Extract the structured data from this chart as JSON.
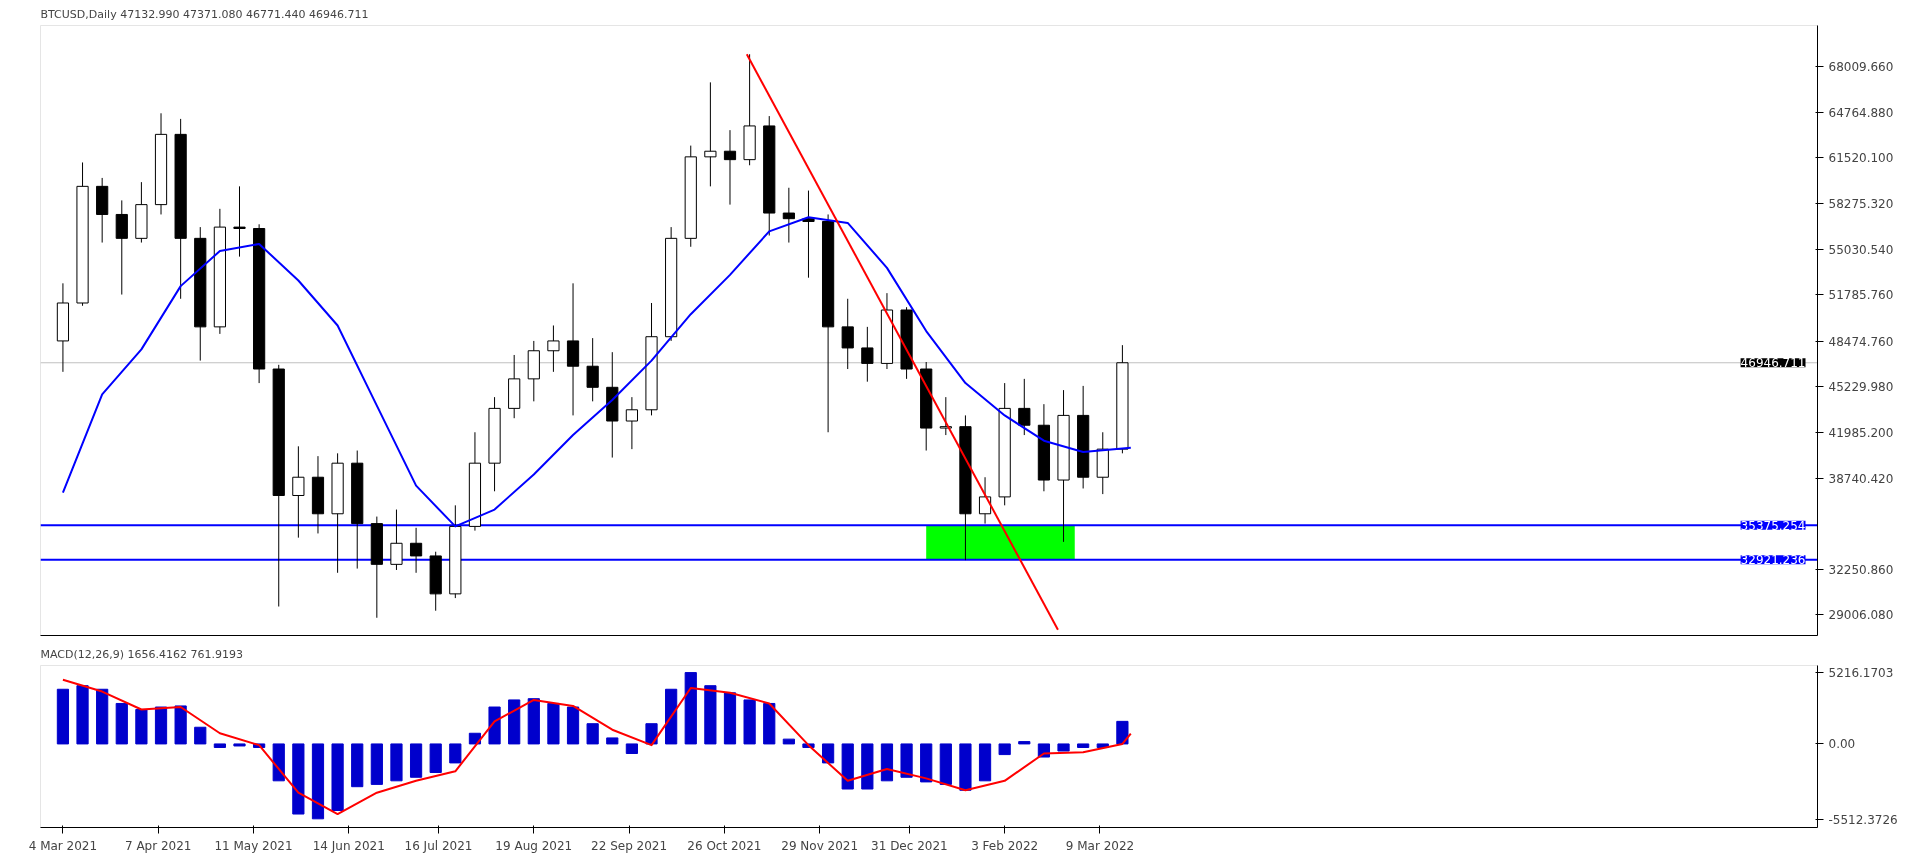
{
  "chart_data": [
    {
      "type": "candlestick",
      "title": "BTCUSD,Daily  47132.990 47371.080 46771.440 46946.711",
      "tick_labels": "y",
      "x": [
        "2021-03-04",
        "2021-03-11",
        "2021-03-18",
        "2021-03-25",
        "2021-04-01",
        "2021-04-08",
        "2021-04-15",
        "2021-04-22",
        "2021-04-29",
        "2021-05-06",
        "2021-05-13",
        "2021-05-20",
        "2021-05-27",
        "2021-06-03",
        "2021-06-10",
        "2021-06-17",
        "2021-06-24",
        "2021-07-01",
        "2021-07-08",
        "2021-07-15",
        "2021-07-22",
        "2021-07-29",
        "2021-08-05",
        "2021-08-12",
        "2021-08-19",
        "2021-08-26",
        "2021-09-02",
        "2021-09-09",
        "2021-09-16",
        "2021-09-23",
        "2021-09-30",
        "2021-10-07",
        "2021-10-14",
        "2021-10-21",
        "2021-10-28",
        "2021-11-04",
        "2021-11-11",
        "2021-11-18",
        "2021-11-25",
        "2021-12-02",
        "2021-12-09",
        "2021-12-16",
        "2021-12-23",
        "2021-12-30",
        "2022-01-06",
        "2022-01-13",
        "2022-01-20",
        "2022-01-27",
        "2022-02-03",
        "2022-02-10",
        "2022-02-17",
        "2022-02-24",
        "2022-03-03",
        "2022-03-10",
        "2022-03-17"
      ],
      "ohlc": [
        [
          48500,
          52600,
          46300,
          51200
        ],
        [
          51200,
          61200,
          51000,
          59500
        ],
        [
          59500,
          60100,
          55500,
          57500
        ],
        [
          57500,
          58500,
          51800,
          55800
        ],
        [
          55800,
          59800,
          55500,
          58200
        ],
        [
          58200,
          64700,
          57500,
          63200
        ],
        [
          63200,
          64300,
          51500,
          55800
        ],
        [
          55800,
          56600,
          47100,
          49500
        ],
        [
          49500,
          57900,
          49000,
          56600
        ],
        [
          56600,
          59500,
          54500,
          56500
        ],
        [
          56500,
          56800,
          45500,
          46500
        ],
        [
          46500,
          46800,
          29600,
          37500
        ],
        [
          37500,
          41000,
          34500,
          38800
        ],
        [
          38800,
          40300,
          34800,
          36200
        ],
        [
          36200,
          40500,
          32000,
          39800
        ],
        [
          39800,
          40700,
          32300,
          35500
        ],
        [
          35500,
          36000,
          28800,
          32600
        ],
        [
          32600,
          36500,
          32200,
          34100
        ],
        [
          34100,
          35200,
          32000,
          33200
        ],
        [
          33200,
          33500,
          29300,
          30500
        ],
        [
          30500,
          36800,
          30200,
          35300
        ],
        [
          35300,
          42000,
          35000,
          39800
        ],
        [
          39800,
          44500,
          37800,
          43700
        ],
        [
          43700,
          47500,
          43000,
          45800
        ],
        [
          45800,
          48500,
          44200,
          47800
        ],
        [
          47800,
          49600,
          46300,
          48500
        ],
        [
          48500,
          52600,
          43200,
          46700
        ],
        [
          46700,
          48700,
          44200,
          45200
        ],
        [
          45200,
          47700,
          40200,
          42800
        ],
        [
          42800,
          44500,
          40800,
          43600
        ],
        [
          43600,
          51200,
          43200,
          48800
        ],
        [
          48800,
          56600,
          48500,
          55800
        ],
        [
          55800,
          62400,
          55200,
          61600
        ],
        [
          61600,
          66900,
          59500,
          62000
        ],
        [
          62000,
          63500,
          58200,
          61400
        ],
        [
          61400,
          68900,
          61000,
          63800
        ],
        [
          63800,
          64500,
          56000,
          57600
        ],
        [
          57600,
          59400,
          55500,
          57200
        ],
        [
          57200,
          59200,
          53000,
          57000
        ],
        [
          57000,
          57500,
          42000,
          49500
        ],
        [
          49500,
          51500,
          46500,
          48000
        ],
        [
          48000,
          49500,
          45600,
          46900
        ],
        [
          46900,
          51900,
          46500,
          50700
        ],
        [
          50700,
          50900,
          45800,
          46500
        ],
        [
          46500,
          47000,
          40700,
          42300
        ],
        [
          42300,
          44500,
          41800,
          42400
        ],
        [
          42400,
          43200,
          32900,
          36200
        ],
        [
          36200,
          38800,
          35500,
          37400
        ],
        [
          37400,
          45500,
          36800,
          43700
        ],
        [
          43700,
          45800,
          41800,
          42500
        ],
        [
          42500,
          44000,
          37800,
          38600
        ],
        [
          38600,
          45000,
          34200,
          43200
        ],
        [
          43200,
          45300,
          38000,
          38800
        ],
        [
          38800,
          42000,
          37600,
          40800
        ],
        [
          40800,
          48200,
          40500,
          46946.711
        ]
      ],
      "series": [
        {
          "type": "line",
          "color": "#0000ff",
          "x": [
            "2021-03-04",
            "2021-03-18",
            "2021-04-01",
            "2021-04-15",
            "2021-04-29",
            "2021-05-13",
            "2021-05-27",
            "2021-06-10",
            "2021-06-24",
            "2021-07-08",
            "2021-07-22",
            "2021-08-05",
            "2021-08-19",
            "2021-09-02",
            "2021-09-16",
            "2021-09-30",
            "2021-10-14",
            "2021-10-28",
            "2021-11-11",
            "2021-11-25",
            "2021-12-09",
            "2021-12-23",
            "2022-01-06",
            "2022-01-20",
            "2022-02-03",
            "2022-02-17",
            "2022-03-03",
            "2022-03-20"
          ],
          "values": [
            37700,
            44700,
            47900,
            52400,
            54900,
            55400,
            52800,
            49600,
            43900,
            38200,
            35300,
            36500,
            39000,
            41800,
            44300,
            47100,
            50400,
            53200,
            56300,
            57300,
            56900,
            53700,
            49200,
            45500,
            43200,
            41400,
            40600,
            40900
          ]
        },
        {
          "type": "line",
          "color": "#ff0000",
          "x": [
            "2021-11-03",
            "2022-02-22"
          ],
          "values": [
            68900,
            27950
          ]
        }
      ],
      "xlim": [
        "2021-02-24",
        "2022-11-20"
      ],
      "ylim": [
        27537,
        70947
      ],
      "yticks": [
        {
          "value": 29006.08,
          "label": "29006.080"
        },
        {
          "value": 32250.86,
          "label": "32250.860"
        },
        {
          "value": 38740.42,
          "label": "38740.420"
        },
        {
          "value": 41985.2,
          "label": "41985.200"
        },
        {
          "value": 45229.98,
          "label": "45229.980"
        },
        {
          "value": 48474.76,
          "label": "48474.760"
        },
        {
          "value": 51785.76,
          "label": "51785.760"
        },
        {
          "value": 55030.54,
          "label": "55030.540"
        },
        {
          "value": 58275.32,
          "label": "58275.320"
        },
        {
          "value": 61520.1,
          "label": "61520.100"
        },
        {
          "value": 64764.88,
          "label": "64764.880"
        },
        {
          "value": 68009.66,
          "label": "68009.660"
        }
      ],
      "ref_lines": [
        {
          "axis": "y",
          "value": 35375.254,
          "label": "35375.254",
          "color": "#0000ff"
        },
        {
          "axis": "y",
          "value": 32921.236,
          "label": "32921.236",
          "color": "#0000ff"
        },
        {
          "axis": "y",
          "value": 46946.711,
          "label": "46946.711",
          "color": "#c0c0c0"
        }
      ],
      "bands": [
        {
          "axis": "x",
          "from": "2022-01-06",
          "to": "2022-02-28",
          "color": "#00ff00"
        }
      ]
    },
    {
      "type": "bar",
      "title": "MACD(12,26,9) 1656.4162 761.9193",
      "x": [
        "2021-03-04",
        "2021-03-11",
        "2021-03-18",
        "2021-03-25",
        "2021-04-01",
        "2021-04-08",
        "2021-04-15",
        "2021-04-22",
        "2021-04-29",
        "2021-05-06",
        "2021-05-13",
        "2021-05-20",
        "2021-05-27",
        "2021-06-03",
        "2021-06-10",
        "2021-06-17",
        "2021-06-24",
        "2021-07-01",
        "2021-07-08",
        "2021-07-15",
        "2021-07-22",
        "2021-07-29",
        "2021-08-05",
        "2021-08-12",
        "2021-08-19",
        "2021-08-26",
        "2021-09-02",
        "2021-09-09",
        "2021-09-16",
        "2021-09-23",
        "2021-09-30",
        "2021-10-07",
        "2021-10-14",
        "2021-10-21",
        "2021-10-28",
        "2021-11-04",
        "2021-11-11",
        "2021-11-18",
        "2021-11-25",
        "2021-12-02",
        "2021-12-09",
        "2021-12-16",
        "2021-12-23",
        "2021-12-30",
        "2022-01-06",
        "2022-01-13",
        "2022-01-20",
        "2022-01-27",
        "2022-02-03",
        "2022-02-10",
        "2022-02-17",
        "2022-02-24",
        "2022-03-03",
        "2022-03-10",
        "2022-03-17"
      ],
      "series": [
        {
          "type": "bar",
          "color": "#0000cc",
          "values": [
            4000,
            4260,
            4000,
            2960,
            2520,
            2700,
            2780,
            1220,
            -260,
            -150,
            -260,
            -2700,
            -5130,
            -5480,
            -4870,
            -3130,
            -2960,
            -2700,
            -2440,
            -2090,
            -1390,
            780,
            2700,
            3220,
            3310,
            2960,
            2700,
            1480,
            440,
            -700,
            1480,
            4000,
            5220,
            4260,
            3740,
            3220,
            2960,
            350,
            -260,
            -1390,
            -3300,
            -3300,
            -2700,
            -2440,
            -2780,
            -2960,
            -3390,
            -2700,
            -780,
            170,
            -960,
            -520,
            -260,
            -260,
            1650
          ]
        },
        {
          "type": "line",
          "color": "#ff0000",
          "x": [
            "2021-03-04",
            "2021-03-18",
            "2021-04-01",
            "2021-04-15",
            "2021-04-29",
            "2021-05-13",
            "2021-05-27",
            "2021-06-10",
            "2021-06-24",
            "2021-07-08",
            "2021-07-22",
            "2021-08-05",
            "2021-08-19",
            "2021-09-02",
            "2021-09-16",
            "2021-09-30",
            "2021-10-14",
            "2021-10-28",
            "2021-11-11",
            "2021-11-25",
            "2021-12-09",
            "2021-12-23",
            "2022-01-06",
            "2022-01-20",
            "2022-02-03",
            "2022-02-17",
            "2022-03-03",
            "2022-03-17",
            "2022-03-20"
          ],
          "values": [
            4700,
            3830,
            2520,
            2700,
            780,
            -90,
            -3570,
            -5130,
            -3570,
            -2700,
            -2000,
            1650,
            3220,
            2780,
            1040,
            -90,
            4090,
            3740,
            2960,
            -90,
            -2700,
            -1830,
            -2520,
            -3390,
            -2700,
            -700,
            -610,
            0,
            760
          ]
        }
      ],
      "xlim": [
        "2021-02-24",
        "2022-11-20"
      ],
      "xticks": [
        {
          "value": "2021-03-04",
          "label": "4 Mar 2021"
        },
        {
          "value": "2021-04-07",
          "label": "7 Apr 2021"
        },
        {
          "value": "2021-05-11",
          "label": "11 May 2021"
        },
        {
          "value": "2021-06-14",
          "label": "14 Jun 2021"
        },
        {
          "value": "2021-07-16",
          "label": "16 Jul 2021"
        },
        {
          "value": "2021-08-19",
          "label": "19 Aug 2021"
        },
        {
          "value": "2021-09-22",
          "label": "22 Sep 2021"
        },
        {
          "value": "2021-10-26",
          "label": "26 Oct 2021"
        },
        {
          "value": "2021-11-29",
          "label": "29 Nov 2021"
        },
        {
          "value": "2021-12-31",
          "label": "31 Dec 2021"
        },
        {
          "value": "2022-02-03",
          "label": "3 Feb 2022"
        },
        {
          "value": "2022-03-09",
          "label": "9 Mar 2022"
        }
      ],
      "ylim": [
        -6115,
        5738
      ],
      "yticks": [
        {
          "value": -5512.3726,
          "label": "-5512.3726"
        },
        {
          "value": 0,
          "label": "0.00"
        },
        {
          "value": 5216.1703,
          "label": "5216.1703"
        }
      ]
    }
  ]
}
